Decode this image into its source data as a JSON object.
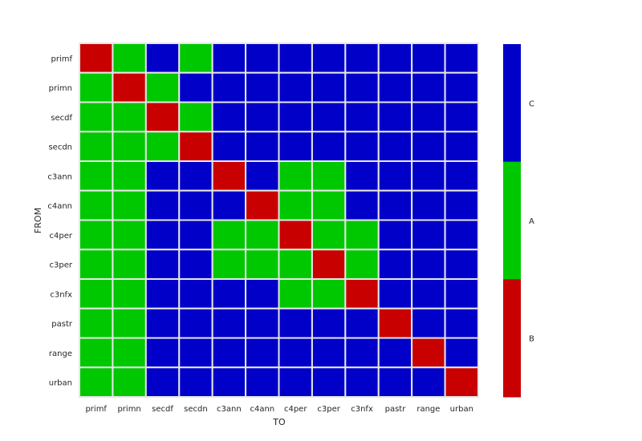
{
  "chart_data": {
    "type": "heatmap",
    "xlabel": "TO",
    "ylabel": "FROM",
    "x_categories": [
      "primf",
      "primn",
      "secdf",
      "secdn",
      "c3ann",
      "c4ann",
      "c4per",
      "c3per",
      "c3nfx",
      "pastr",
      "range",
      "urban"
    ],
    "y_categories": [
      "primf",
      "primn",
      "secdf",
      "secdn",
      "c3ann",
      "c4ann",
      "c4per",
      "c3per",
      "c3nfx",
      "pastr",
      "range",
      "urban"
    ],
    "matrix": [
      [
        "B",
        "A",
        "C",
        "A",
        "C",
        "C",
        "C",
        "C",
        "C",
        "C",
        "C",
        "C"
      ],
      [
        "A",
        "B",
        "A",
        "C",
        "C",
        "C",
        "C",
        "C",
        "C",
        "C",
        "C",
        "C"
      ],
      [
        "A",
        "A",
        "B",
        "A",
        "C",
        "C",
        "C",
        "C",
        "C",
        "C",
        "C",
        "C"
      ],
      [
        "A",
        "A",
        "A",
        "B",
        "C",
        "C",
        "C",
        "C",
        "C",
        "C",
        "C",
        "C"
      ],
      [
        "A",
        "A",
        "C",
        "C",
        "B",
        "C",
        "A",
        "A",
        "C",
        "C",
        "C",
        "C"
      ],
      [
        "A",
        "A",
        "C",
        "C",
        "C",
        "B",
        "A",
        "A",
        "C",
        "C",
        "C",
        "C"
      ],
      [
        "A",
        "A",
        "C",
        "C",
        "A",
        "A",
        "B",
        "A",
        "A",
        "C",
        "C",
        "C"
      ],
      [
        "A",
        "A",
        "C",
        "C",
        "A",
        "A",
        "A",
        "B",
        "A",
        "C",
        "C",
        "C"
      ],
      [
        "A",
        "A",
        "C",
        "C",
        "C",
        "C",
        "A",
        "A",
        "B",
        "C",
        "C",
        "C"
      ],
      [
        "A",
        "A",
        "C",
        "C",
        "C",
        "C",
        "C",
        "C",
        "C",
        "B",
        "C",
        "C"
      ],
      [
        "A",
        "A",
        "C",
        "C",
        "C",
        "C",
        "C",
        "C",
        "C",
        "C",
        "B",
        "C"
      ],
      [
        "A",
        "A",
        "C",
        "C",
        "C",
        "C",
        "C",
        "C",
        "C",
        "C",
        "C",
        "B"
      ]
    ],
    "colorbar": {
      "entries": [
        {
          "label": "C",
          "color": "#0000c8"
        },
        {
          "label": "A",
          "color": "#00c800"
        },
        {
          "label": "B",
          "color": "#c80000"
        }
      ]
    },
    "grid_color": "#e6e6e6",
    "legend_placement": "right"
  }
}
